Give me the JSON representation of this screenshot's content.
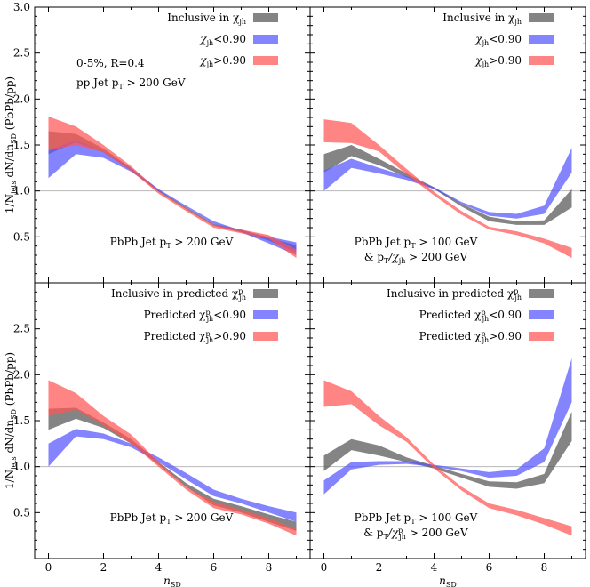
{
  "figure": {
    "y_axis_label": "1/N_jets dN/dn_SD (PbPb/pp)",
    "x_axis_label": "n_SD"
  },
  "chart_data": [
    {
      "type": "area",
      "panel": "top-left",
      "xlim": [
        -0.5,
        9.5
      ],
      "ylim": [
        0,
        3
      ],
      "xticks": [
        0,
        2,
        4,
        6,
        8
      ],
      "yticks": [
        0.5,
        1.0,
        1.5,
        2.0,
        2.5,
        3.0
      ],
      "reference_line": 1.0,
      "legend_position": "top-right",
      "legend": [
        "Inclusive in χ_jh",
        "χ_jh<0.90",
        "χ_jh>0.90"
      ],
      "annotations": [
        "0-5%, R=0.4",
        "pp Jet p_T > 200 GeV",
        "PbPb Jet p_T > 200 GeV"
      ],
      "x": [
        0,
        1,
        2,
        3,
        4,
        5,
        6,
        7,
        8,
        9
      ],
      "series": [
        {
          "name": "Inclusive in χ_jh",
          "color": "#555555",
          "lower": [
            1.4,
            1.53,
            1.42,
            1.22,
            0.99,
            0.8,
            0.62,
            0.55,
            0.46,
            0.33
          ],
          "upper": [
            1.65,
            1.62,
            1.46,
            1.25,
            1.01,
            0.82,
            0.64,
            0.58,
            0.49,
            0.41
          ]
        },
        {
          "name": "χ_jh<0.90",
          "color": "#5555ff",
          "lower": [
            1.14,
            1.4,
            1.36,
            1.21,
            1.0,
            0.82,
            0.64,
            0.55,
            0.43,
            0.3
          ],
          "upper": [
            1.45,
            1.55,
            1.43,
            1.25,
            1.02,
            0.84,
            0.67,
            0.57,
            0.5,
            0.44
          ]
        },
        {
          "name": "χ_jh>0.90",
          "color": "#ff5555",
          "lower": [
            1.44,
            1.5,
            1.42,
            1.22,
            0.97,
            0.78,
            0.6,
            0.54,
            0.48,
            0.27
          ],
          "upper": [
            1.81,
            1.7,
            1.5,
            1.27,
            1.0,
            0.81,
            0.63,
            0.58,
            0.52,
            0.36
          ]
        }
      ]
    },
    {
      "type": "area",
      "panel": "top-right",
      "xlim": [
        -0.5,
        9.5
      ],
      "ylim": [
        0,
        3
      ],
      "xticks": [
        0,
        2,
        4,
        6,
        8
      ],
      "yticks": [
        0.5,
        1.0,
        1.5,
        2.0,
        2.5,
        3.0
      ],
      "reference_line": 1.0,
      "legend_position": "top-right",
      "legend": [
        "Inclusive in χ_jh",
        "χ_jh<0.90",
        "χ_jh>0.90"
      ],
      "annotations": [
        "PbPb Jet p_T > 100 GeV",
        "& p_T/χ_jh > 200 GeV"
      ],
      "x": [
        0,
        1,
        2,
        3,
        4,
        5,
        6,
        7,
        8,
        9
      ],
      "series": [
        {
          "name": "Inclusive in χ_jh",
          "color": "#555555",
          "lower": [
            1.2,
            1.38,
            1.28,
            1.15,
            1.02,
            0.83,
            0.67,
            0.63,
            0.63,
            0.82
          ],
          "upper": [
            1.4,
            1.5,
            1.35,
            1.19,
            1.04,
            0.86,
            0.72,
            0.67,
            0.68,
            1.02
          ]
        },
        {
          "name": "χ_jh<0.90",
          "color": "#5555ff",
          "lower": [
            1.0,
            1.25,
            1.19,
            1.12,
            1.02,
            0.86,
            0.73,
            0.7,
            0.75,
            1.2
          ],
          "upper": [
            1.22,
            1.35,
            1.25,
            1.16,
            1.04,
            0.88,
            0.77,
            0.75,
            0.84,
            1.47
          ]
        },
        {
          "name": "χ_jh>0.90",
          "color": "#ff5555",
          "lower": [
            1.53,
            1.52,
            1.43,
            1.18,
            0.95,
            0.74,
            0.58,
            0.52,
            0.43,
            0.27
          ],
          "upper": [
            1.78,
            1.74,
            1.5,
            1.24,
            0.99,
            0.78,
            0.61,
            0.56,
            0.48,
            0.38
          ]
        }
      ]
    },
    {
      "type": "area",
      "panel": "bottom-left",
      "xlim": [
        -0.5,
        9.5
      ],
      "ylim": [
        0,
        3
      ],
      "xticks": [
        0,
        2,
        4,
        6,
        8
      ],
      "yticks": [
        0.5,
        1.0,
        1.5,
        2.0,
        2.5
      ],
      "reference_line": 1.0,
      "legend_position": "top-right",
      "legend": [
        "Inclusive in predicted χ^p_jh",
        "Predicted χ^p_jh<0.90",
        "Predicted χ^p_jh>0.90"
      ],
      "annotations": [
        "PbPb Jet p_T > 200 GeV"
      ],
      "x": [
        0,
        1,
        2,
        3,
        4,
        5,
        6,
        7,
        8,
        9
      ],
      "series": [
        {
          "name": "Inclusive in predicted χ^p_jh",
          "color": "#555555",
          "lower": [
            1.4,
            1.52,
            1.42,
            1.25,
            1.02,
            0.78,
            0.58,
            0.5,
            0.4,
            0.3
          ],
          "upper": [
            1.63,
            1.64,
            1.48,
            1.3,
            1.05,
            0.82,
            0.65,
            0.57,
            0.48,
            0.4
          ]
        },
        {
          "name": "Predicted χ^p_jh<0.90",
          "color": "#5555ff",
          "lower": [
            1.0,
            1.33,
            1.3,
            1.21,
            1.05,
            0.86,
            0.68,
            0.6,
            0.5,
            0.4
          ],
          "upper": [
            1.25,
            1.41,
            1.36,
            1.25,
            1.1,
            0.93,
            0.75,
            0.65,
            0.57,
            0.5
          ]
        },
        {
          "name": "Predicted χ^p_jh>0.90",
          "color": "#ff5555",
          "lower": [
            1.55,
            1.62,
            1.45,
            1.25,
            1.0,
            0.75,
            0.55,
            0.48,
            0.38,
            0.25
          ],
          "upper": [
            1.94,
            1.8,
            1.55,
            1.35,
            1.05,
            0.78,
            0.62,
            0.53,
            0.44,
            0.32
          ]
        }
      ]
    },
    {
      "type": "area",
      "panel": "bottom-right",
      "xlim": [
        -0.5,
        9.5
      ],
      "ylim": [
        0,
        3
      ],
      "xticks": [
        0,
        2,
        4,
        6,
        8
      ],
      "yticks": [
        0.5,
        1.0,
        1.5,
        2.0,
        2.5
      ],
      "reference_line": 1.0,
      "legend_position": "top-right",
      "legend": [
        "Inclusive in predicted χ^p_jh",
        "Predicted χ^p_jh<0.90",
        "Predicted χ^p_jh>0.90"
      ],
      "annotations": [
        "PbPb Jet p_T > 100 GeV",
        "& p_T/χ^p_jh > 200 GeV"
      ],
      "x": [
        0,
        1,
        2,
        3,
        4,
        5,
        6,
        7,
        8,
        9
      ],
      "series": [
        {
          "name": "Inclusive in predicted χ^p_jh",
          "color": "#555555",
          "lower": [
            0.95,
            1.18,
            1.12,
            1.05,
            0.98,
            0.88,
            0.78,
            0.76,
            0.82,
            1.28
          ],
          "upper": [
            1.12,
            1.3,
            1.23,
            1.1,
            1.01,
            0.92,
            0.84,
            0.83,
            0.92,
            1.6
          ]
        },
        {
          "name": "Predicted χ^p_jh<0.90",
          "color": "#5555ff",
          "lower": [
            0.7,
            0.97,
            1.02,
            1.03,
            1.0,
            0.95,
            0.88,
            0.9,
            1.05,
            1.7
          ],
          "upper": [
            0.85,
            1.05,
            1.06,
            1.06,
            1.02,
            0.98,
            0.94,
            0.97,
            1.2,
            2.18
          ]
        },
        {
          "name": "Predicted χ^p_jh>0.90",
          "color": "#ff5555",
          "lower": [
            1.65,
            1.68,
            1.45,
            1.27,
            0.98,
            0.74,
            0.55,
            0.47,
            0.37,
            0.25
          ],
          "upper": [
            1.94,
            1.82,
            1.55,
            1.32,
            1.02,
            0.78,
            0.6,
            0.53,
            0.44,
            0.35
          ]
        }
      ]
    }
  ]
}
